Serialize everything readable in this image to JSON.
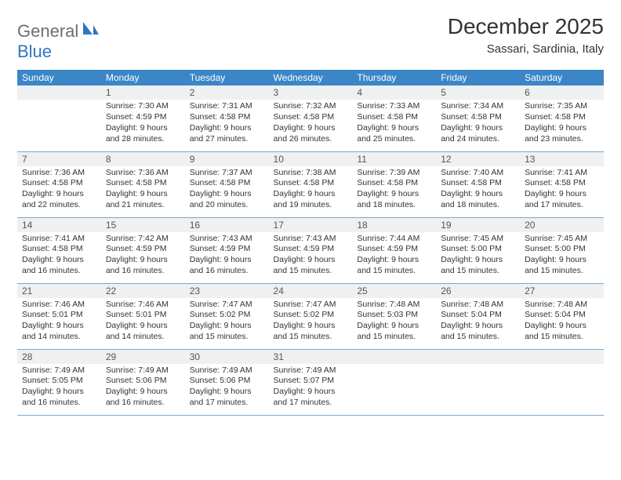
{
  "logo": {
    "part1": "General",
    "part2": "Blue"
  },
  "header": {
    "month_title": "December 2025",
    "location": "Sassari, Sardinia, Italy"
  },
  "colors": {
    "header_bg": "#3b86c7",
    "header_text": "#ffffff",
    "daynum_bg": "#eef0f1",
    "border": "#7fa8c9",
    "logo_gray": "#6f6f6f",
    "logo_blue": "#2f78bd"
  },
  "weekdays": [
    "Sunday",
    "Monday",
    "Tuesday",
    "Wednesday",
    "Thursday",
    "Friday",
    "Saturday"
  ],
  "weeks": [
    [
      {
        "n": "",
        "sunrise": "",
        "sunset": "",
        "daylight": ""
      },
      {
        "n": "1",
        "sunrise": "Sunrise: 7:30 AM",
        "sunset": "Sunset: 4:59 PM",
        "daylight": "Daylight: 9 hours and 28 minutes."
      },
      {
        "n": "2",
        "sunrise": "Sunrise: 7:31 AM",
        "sunset": "Sunset: 4:58 PM",
        "daylight": "Daylight: 9 hours and 27 minutes."
      },
      {
        "n": "3",
        "sunrise": "Sunrise: 7:32 AM",
        "sunset": "Sunset: 4:58 PM",
        "daylight": "Daylight: 9 hours and 26 minutes."
      },
      {
        "n": "4",
        "sunrise": "Sunrise: 7:33 AM",
        "sunset": "Sunset: 4:58 PM",
        "daylight": "Daylight: 9 hours and 25 minutes."
      },
      {
        "n": "5",
        "sunrise": "Sunrise: 7:34 AM",
        "sunset": "Sunset: 4:58 PM",
        "daylight": "Daylight: 9 hours and 24 minutes."
      },
      {
        "n": "6",
        "sunrise": "Sunrise: 7:35 AM",
        "sunset": "Sunset: 4:58 PM",
        "daylight": "Daylight: 9 hours and 23 minutes."
      }
    ],
    [
      {
        "n": "7",
        "sunrise": "Sunrise: 7:36 AM",
        "sunset": "Sunset: 4:58 PM",
        "daylight": "Daylight: 9 hours and 22 minutes."
      },
      {
        "n": "8",
        "sunrise": "Sunrise: 7:36 AM",
        "sunset": "Sunset: 4:58 PM",
        "daylight": "Daylight: 9 hours and 21 minutes."
      },
      {
        "n": "9",
        "sunrise": "Sunrise: 7:37 AM",
        "sunset": "Sunset: 4:58 PM",
        "daylight": "Daylight: 9 hours and 20 minutes."
      },
      {
        "n": "10",
        "sunrise": "Sunrise: 7:38 AM",
        "sunset": "Sunset: 4:58 PM",
        "daylight": "Daylight: 9 hours and 19 minutes."
      },
      {
        "n": "11",
        "sunrise": "Sunrise: 7:39 AM",
        "sunset": "Sunset: 4:58 PM",
        "daylight": "Daylight: 9 hours and 18 minutes."
      },
      {
        "n": "12",
        "sunrise": "Sunrise: 7:40 AM",
        "sunset": "Sunset: 4:58 PM",
        "daylight": "Daylight: 9 hours and 18 minutes."
      },
      {
        "n": "13",
        "sunrise": "Sunrise: 7:41 AM",
        "sunset": "Sunset: 4:58 PM",
        "daylight": "Daylight: 9 hours and 17 minutes."
      }
    ],
    [
      {
        "n": "14",
        "sunrise": "Sunrise: 7:41 AM",
        "sunset": "Sunset: 4:58 PM",
        "daylight": "Daylight: 9 hours and 16 minutes."
      },
      {
        "n": "15",
        "sunrise": "Sunrise: 7:42 AM",
        "sunset": "Sunset: 4:59 PM",
        "daylight": "Daylight: 9 hours and 16 minutes."
      },
      {
        "n": "16",
        "sunrise": "Sunrise: 7:43 AM",
        "sunset": "Sunset: 4:59 PM",
        "daylight": "Daylight: 9 hours and 16 minutes."
      },
      {
        "n": "17",
        "sunrise": "Sunrise: 7:43 AM",
        "sunset": "Sunset: 4:59 PM",
        "daylight": "Daylight: 9 hours and 15 minutes."
      },
      {
        "n": "18",
        "sunrise": "Sunrise: 7:44 AM",
        "sunset": "Sunset: 4:59 PM",
        "daylight": "Daylight: 9 hours and 15 minutes."
      },
      {
        "n": "19",
        "sunrise": "Sunrise: 7:45 AM",
        "sunset": "Sunset: 5:00 PM",
        "daylight": "Daylight: 9 hours and 15 minutes."
      },
      {
        "n": "20",
        "sunrise": "Sunrise: 7:45 AM",
        "sunset": "Sunset: 5:00 PM",
        "daylight": "Daylight: 9 hours and 15 minutes."
      }
    ],
    [
      {
        "n": "21",
        "sunrise": "Sunrise: 7:46 AM",
        "sunset": "Sunset: 5:01 PM",
        "daylight": "Daylight: 9 hours and 14 minutes."
      },
      {
        "n": "22",
        "sunrise": "Sunrise: 7:46 AM",
        "sunset": "Sunset: 5:01 PM",
        "daylight": "Daylight: 9 hours and 14 minutes."
      },
      {
        "n": "23",
        "sunrise": "Sunrise: 7:47 AM",
        "sunset": "Sunset: 5:02 PM",
        "daylight": "Daylight: 9 hours and 15 minutes."
      },
      {
        "n": "24",
        "sunrise": "Sunrise: 7:47 AM",
        "sunset": "Sunset: 5:02 PM",
        "daylight": "Daylight: 9 hours and 15 minutes."
      },
      {
        "n": "25",
        "sunrise": "Sunrise: 7:48 AM",
        "sunset": "Sunset: 5:03 PM",
        "daylight": "Daylight: 9 hours and 15 minutes."
      },
      {
        "n": "26",
        "sunrise": "Sunrise: 7:48 AM",
        "sunset": "Sunset: 5:04 PM",
        "daylight": "Daylight: 9 hours and 15 minutes."
      },
      {
        "n": "27",
        "sunrise": "Sunrise: 7:48 AM",
        "sunset": "Sunset: 5:04 PM",
        "daylight": "Daylight: 9 hours and 15 minutes."
      }
    ],
    [
      {
        "n": "28",
        "sunrise": "Sunrise: 7:49 AM",
        "sunset": "Sunset: 5:05 PM",
        "daylight": "Daylight: 9 hours and 16 minutes."
      },
      {
        "n": "29",
        "sunrise": "Sunrise: 7:49 AM",
        "sunset": "Sunset: 5:06 PM",
        "daylight": "Daylight: 9 hours and 16 minutes."
      },
      {
        "n": "30",
        "sunrise": "Sunrise: 7:49 AM",
        "sunset": "Sunset: 5:06 PM",
        "daylight": "Daylight: 9 hours and 17 minutes."
      },
      {
        "n": "31",
        "sunrise": "Sunrise: 7:49 AM",
        "sunset": "Sunset: 5:07 PM",
        "daylight": "Daylight: 9 hours and 17 minutes."
      },
      {
        "n": "",
        "sunrise": "",
        "sunset": "",
        "daylight": ""
      },
      {
        "n": "",
        "sunrise": "",
        "sunset": "",
        "daylight": ""
      },
      {
        "n": "",
        "sunrise": "",
        "sunset": "",
        "daylight": ""
      }
    ]
  ]
}
